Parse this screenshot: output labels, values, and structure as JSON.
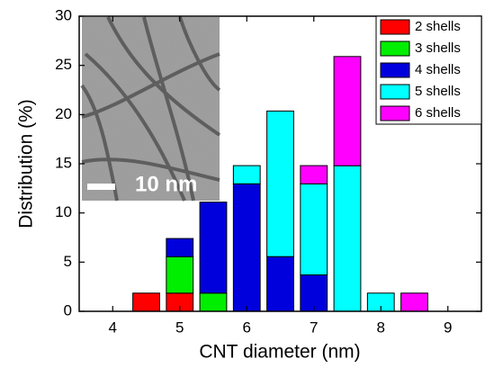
{
  "chart_data": {
    "type": "stacked-bar",
    "xlabel": "CNT diameter (nm)",
    "ylabel": "Distribution (%)",
    "x": [
      4.5,
      5,
      5.5,
      6,
      6.5,
      7,
      7.5,
      8,
      8.5
    ],
    "series": [
      {
        "name": "2 shells",
        "color": "#ff0000",
        "values": [
          1.85,
          1.85,
          null,
          null,
          null,
          null,
          null,
          null,
          null
        ]
      },
      {
        "name": "3 shells",
        "color": "#00ee00",
        "values": [
          null,
          3.7,
          1.85,
          null,
          null,
          null,
          null,
          null,
          null
        ]
      },
      {
        "name": "4 shells",
        "color": "#0000dd",
        "values": [
          null,
          1.85,
          9.25,
          12.96,
          5.56,
          3.7,
          null,
          null,
          null
        ]
      },
      {
        "name": "5 shells",
        "color": "#00ffff",
        "values": [
          null,
          null,
          null,
          1.85,
          14.8,
          9.26,
          14.8,
          1.85,
          null
        ]
      },
      {
        "name": "6 shells",
        "color": "#ff00ff",
        "values": [
          null,
          null,
          null,
          null,
          null,
          1.85,
          11.1,
          null,
          1.85
        ]
      }
    ],
    "bar_width": 0.4,
    "xlim": [
      3.5,
      9.5
    ],
    "xticks": [
      4,
      5,
      6,
      7,
      8,
      9
    ],
    "ylim": [
      0,
      30
    ],
    "yticks": [
      0,
      5,
      10,
      15,
      20,
      25,
      30
    ],
    "legend": "top-right",
    "inset_label": "10 nm"
  }
}
